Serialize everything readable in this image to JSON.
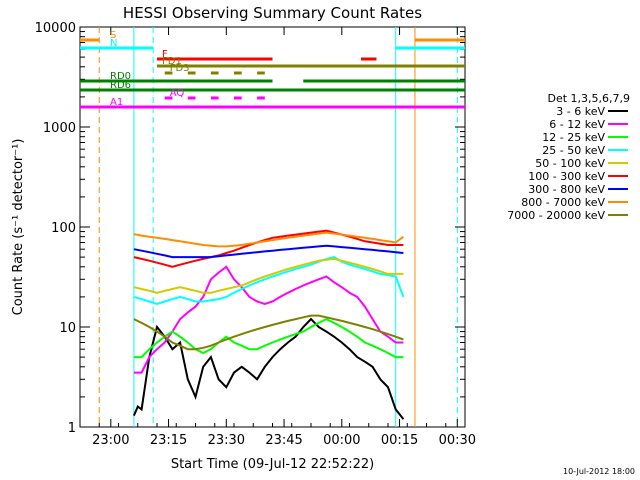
{
  "chart_data": {
    "type": "line",
    "title": "HESSI Observing Summary Count Rates",
    "xlabel": "Start Time (09-Jul-12 22:52:22)",
    "ylabel": "Count Rate (s⁻¹ detector⁻¹)",
    "ylog": true,
    "ylim": [
      1,
      10000
    ],
    "xlim_min_from_start": [
      0,
      100
    ],
    "x_ticks": [
      {
        "t": 8,
        "label": "23:00"
      },
      {
        "t": 23,
        "label": "23:15"
      },
      {
        "t": 38,
        "label": "23:30"
      },
      {
        "t": 53,
        "label": "23:45"
      },
      {
        "t": 68,
        "label": "00:00"
      },
      {
        "t": 83,
        "label": "00:15"
      },
      {
        "t": 98,
        "label": "00:30"
      }
    ],
    "y_ticks": [
      {
        "v": 1,
        "label": "1"
      },
      {
        "v": 10,
        "label": "10"
      },
      {
        "v": 100,
        "label": "100"
      },
      {
        "v": 1000,
        "label": "1000"
      },
      {
        "v": 10000,
        "label": "10000"
      }
    ],
    "legend_title": "Det 1,3,5,6,7,9",
    "legend_position": "right",
    "series": [
      {
        "name": "3 - 6 keV",
        "color": "#000000",
        "t": [
          14,
          15,
          16,
          18,
          20,
          22,
          24,
          26,
          28,
          30,
          32,
          34,
          36,
          38,
          40,
          42,
          44,
          46,
          48,
          50,
          52,
          54,
          56,
          58,
          60,
          62,
          64,
          66,
          68,
          70,
          72,
          74,
          76,
          78,
          80,
          82,
          84
        ],
        "v": [
          1.3,
          1.6,
          1.5,
          5,
          10,
          8,
          6,
          7,
          3,
          2,
          4,
          5,
          3,
          2.5,
          3.5,
          4,
          3.5,
          3,
          4,
          5,
          6,
          7,
          8,
          10,
          12,
          10,
          9,
          8,
          7,
          6,
          5,
          4.5,
          4,
          3,
          2.5,
          1.5,
          1.2
        ]
      },
      {
        "name": "6 - 12 keV",
        "color": "#ff00ff",
        "t": [
          14,
          16,
          18,
          20,
          22,
          24,
          26,
          28,
          30,
          32,
          34,
          36,
          38,
          40,
          42,
          44,
          46,
          48,
          50,
          52,
          54,
          56,
          58,
          60,
          62,
          64,
          66,
          68,
          70,
          72,
          74,
          76,
          78,
          80,
          82,
          84
        ],
        "v": [
          3.5,
          3.5,
          5,
          6,
          7,
          9,
          12,
          14,
          16,
          20,
          30,
          35,
          40,
          30,
          25,
          20,
          18,
          17,
          18,
          20,
          22,
          24,
          26,
          28,
          30,
          32,
          28,
          25,
          22,
          20,
          16,
          12,
          9,
          8,
          7,
          7
        ]
      },
      {
        "name": "12 - 25 keV",
        "color": "#00ff00",
        "t": [
          14,
          16,
          18,
          20,
          22,
          24,
          26,
          28,
          30,
          32,
          34,
          36,
          38,
          40,
          42,
          44,
          46,
          48,
          50,
          52,
          54,
          56,
          58,
          60,
          62,
          64,
          66,
          68,
          70,
          72,
          74,
          76,
          78,
          80,
          82,
          84
        ],
        "v": [
          5,
          5,
          6,
          7,
          8,
          9,
          8,
          7,
          6,
          5.5,
          6,
          7,
          8,
          7,
          6.5,
          6,
          6,
          6.5,
          7,
          7.5,
          8,
          8.5,
          9,
          10,
          11,
          12,
          11,
          10,
          9,
          8,
          7,
          6.5,
          6,
          5.5,
          5,
          5
        ]
      },
      {
        "name": "25 - 50 keV",
        "color": "#00ffff",
        "t": [
          14,
          16,
          18,
          20,
          22,
          24,
          26,
          28,
          30,
          32,
          34,
          36,
          38,
          40,
          42,
          44,
          46,
          48,
          50,
          52,
          54,
          56,
          58,
          60,
          62,
          64,
          66,
          68,
          70,
          72,
          74,
          76,
          78,
          80,
          82,
          84
        ],
        "v": [
          20,
          19,
          18,
          17,
          18,
          19,
          20,
          19,
          18,
          18,
          18.5,
          19,
          20,
          22,
          24,
          26,
          28,
          30,
          32,
          34,
          36,
          38,
          40,
          42,
          45,
          48,
          50,
          45,
          42,
          40,
          38,
          36,
          34,
          33,
          32,
          20
        ]
      },
      {
        "name": "50 - 100 keV",
        "color": "#cccc00",
        "t": [
          14,
          16,
          18,
          20,
          22,
          24,
          26,
          28,
          30,
          32,
          34,
          36,
          38,
          40,
          42,
          44,
          46,
          48,
          50,
          52,
          54,
          56,
          58,
          60,
          62,
          64,
          66,
          68,
          70,
          72,
          74,
          76,
          78,
          80,
          82,
          84
        ],
        "v": [
          25,
          24,
          23,
          22,
          23,
          24,
          25,
          24,
          23,
          22,
          22,
          23,
          24,
          25,
          26,
          28,
          30,
          32,
          34,
          36,
          38,
          40,
          42,
          44,
          46,
          47,
          48,
          46,
          44,
          42,
          40,
          38,
          36,
          34,
          34,
          34
        ]
      },
      {
        "name": "100 - 300 keV",
        "color": "#ff0000",
        "t": [
          14,
          16,
          18,
          20,
          22,
          24,
          26,
          28,
          30,
          32,
          34,
          36,
          38,
          40,
          42,
          44,
          46,
          48,
          50,
          52,
          54,
          56,
          58,
          60,
          62,
          64,
          66,
          68,
          70,
          72,
          74,
          76,
          78,
          80,
          82,
          84
        ],
        "v": [
          50,
          48,
          46,
          44,
          42,
          40,
          42,
          44,
          46,
          48,
          50,
          52,
          55,
          58,
          62,
          66,
          70,
          74,
          78,
          80,
          82,
          84,
          86,
          88,
          90,
          92,
          88,
          84,
          80,
          76,
          72,
          70,
          68,
          66,
          66,
          66
        ]
      },
      {
        "name": "300 - 800 keV",
        "color": "#0000ff",
        "t": [
          14,
          16,
          18,
          20,
          22,
          24,
          26,
          28,
          30,
          32,
          34,
          36,
          38,
          40,
          42,
          44,
          46,
          48,
          50,
          52,
          54,
          56,
          58,
          60,
          62,
          64,
          66,
          68,
          70,
          72,
          74,
          76,
          78,
          80,
          82,
          84
        ],
        "v": [
          60,
          58,
          56,
          54,
          52,
          50,
          50,
          50,
          50,
          50,
          50,
          51,
          52,
          53,
          54,
          55,
          56,
          57,
          58,
          59,
          60,
          61,
          62,
          63,
          64,
          65,
          64,
          63,
          62,
          61,
          60,
          59,
          58,
          57,
          56,
          55
        ]
      },
      {
        "name": "800 - 7000 keV",
        "color": "#ff8c00",
        "t": [
          14,
          16,
          18,
          20,
          22,
          24,
          26,
          28,
          30,
          32,
          34,
          36,
          38,
          40,
          42,
          44,
          46,
          48,
          50,
          52,
          54,
          56,
          58,
          60,
          62,
          64,
          66,
          68,
          70,
          72,
          74,
          76,
          78,
          80,
          82,
          84
        ],
        "v": [
          85,
          82,
          80,
          78,
          76,
          74,
          72,
          70,
          68,
          66,
          65,
          64,
          64,
          65,
          66,
          68,
          70,
          72,
          74,
          76,
          78,
          80,
          82,
          84,
          86,
          88,
          86,
          84,
          82,
          80,
          78,
          76,
          74,
          72,
          70,
          80
        ]
      },
      {
        "name": "7000 - 20000 keV",
        "color": "#808000",
        "t": [
          14,
          16,
          18,
          20,
          22,
          24,
          26,
          28,
          30,
          32,
          34,
          36,
          38,
          40,
          42,
          44,
          46,
          48,
          50,
          52,
          54,
          56,
          58,
          60,
          62,
          64,
          66,
          68,
          70,
          72,
          74,
          76,
          78,
          80,
          82,
          84
        ],
        "v": [
          12,
          11,
          10,
          9,
          8,
          7,
          6.5,
          6,
          6,
          6.2,
          6.5,
          7,
          7.5,
          8,
          8.5,
          9,
          9.5,
          10,
          10.5,
          11,
          11.5,
          12,
          12.5,
          13,
          13,
          12.5,
          12,
          11.5,
          11,
          10.5,
          10,
          9.5,
          9,
          8.5,
          8,
          7.5
        ]
      }
    ],
    "flag_bars": [
      {
        "label": "S",
        "color": "#ff8c00",
        "segments": [
          [
            0,
            5
          ],
          [
            87,
            100
          ]
        ]
      },
      {
        "label": "N",
        "color": "#00ffff",
        "segments": [
          [
            0,
            19
          ],
          [
            82,
            100
          ]
        ]
      },
      {
        "label": "F",
        "color": "#ff0000",
        "segments": [
          [
            20,
            50
          ],
          [
            73,
            77
          ]
        ]
      },
      {
        "label": "FD1",
        "color": "#808000",
        "segments": [
          [
            20,
            100
          ]
        ]
      },
      {
        "label": "FD3",
        "color": "#808000",
        "segments": [
          [
            22,
            24
          ],
          [
            28,
            30
          ],
          [
            34,
            36
          ],
          [
            40,
            42
          ],
          [
            46,
            48
          ]
        ]
      },
      {
        "label": "RD0",
        "color": "#008000",
        "segments": [
          [
            0,
            50
          ],
          [
            58,
            100
          ]
        ]
      },
      {
        "label": "RD6",
        "color": "#008000",
        "segments": [
          [
            0,
            100
          ]
        ]
      },
      {
        "label": "AQ",
        "color": "#ff00ff",
        "segments": [
          [
            22,
            24
          ],
          [
            28,
            30
          ],
          [
            34,
            36
          ],
          [
            40,
            42
          ],
          [
            46,
            48
          ]
        ]
      },
      {
        "label": "A1",
        "color": "#ff00ff",
        "segments": [
          [
            0,
            100
          ]
        ]
      }
    ],
    "vertical_lines": [
      {
        "t": 5,
        "color": "#ff8c00",
        "dashed": true
      },
      {
        "t": 19,
        "color": "#00ffff",
        "dashed": true
      },
      {
        "t": 14,
        "color": "#00ffff",
        "dashed": false
      },
      {
        "t": 82,
        "color": "#00ffff",
        "dashed": false
      },
      {
        "t": 87,
        "color": "#ff8c00",
        "dashed": false
      },
      {
        "t": 98,
        "color": "#00ffff",
        "dashed": true
      }
    ],
    "footer_date": "10-Jul-2012 18:00"
  }
}
